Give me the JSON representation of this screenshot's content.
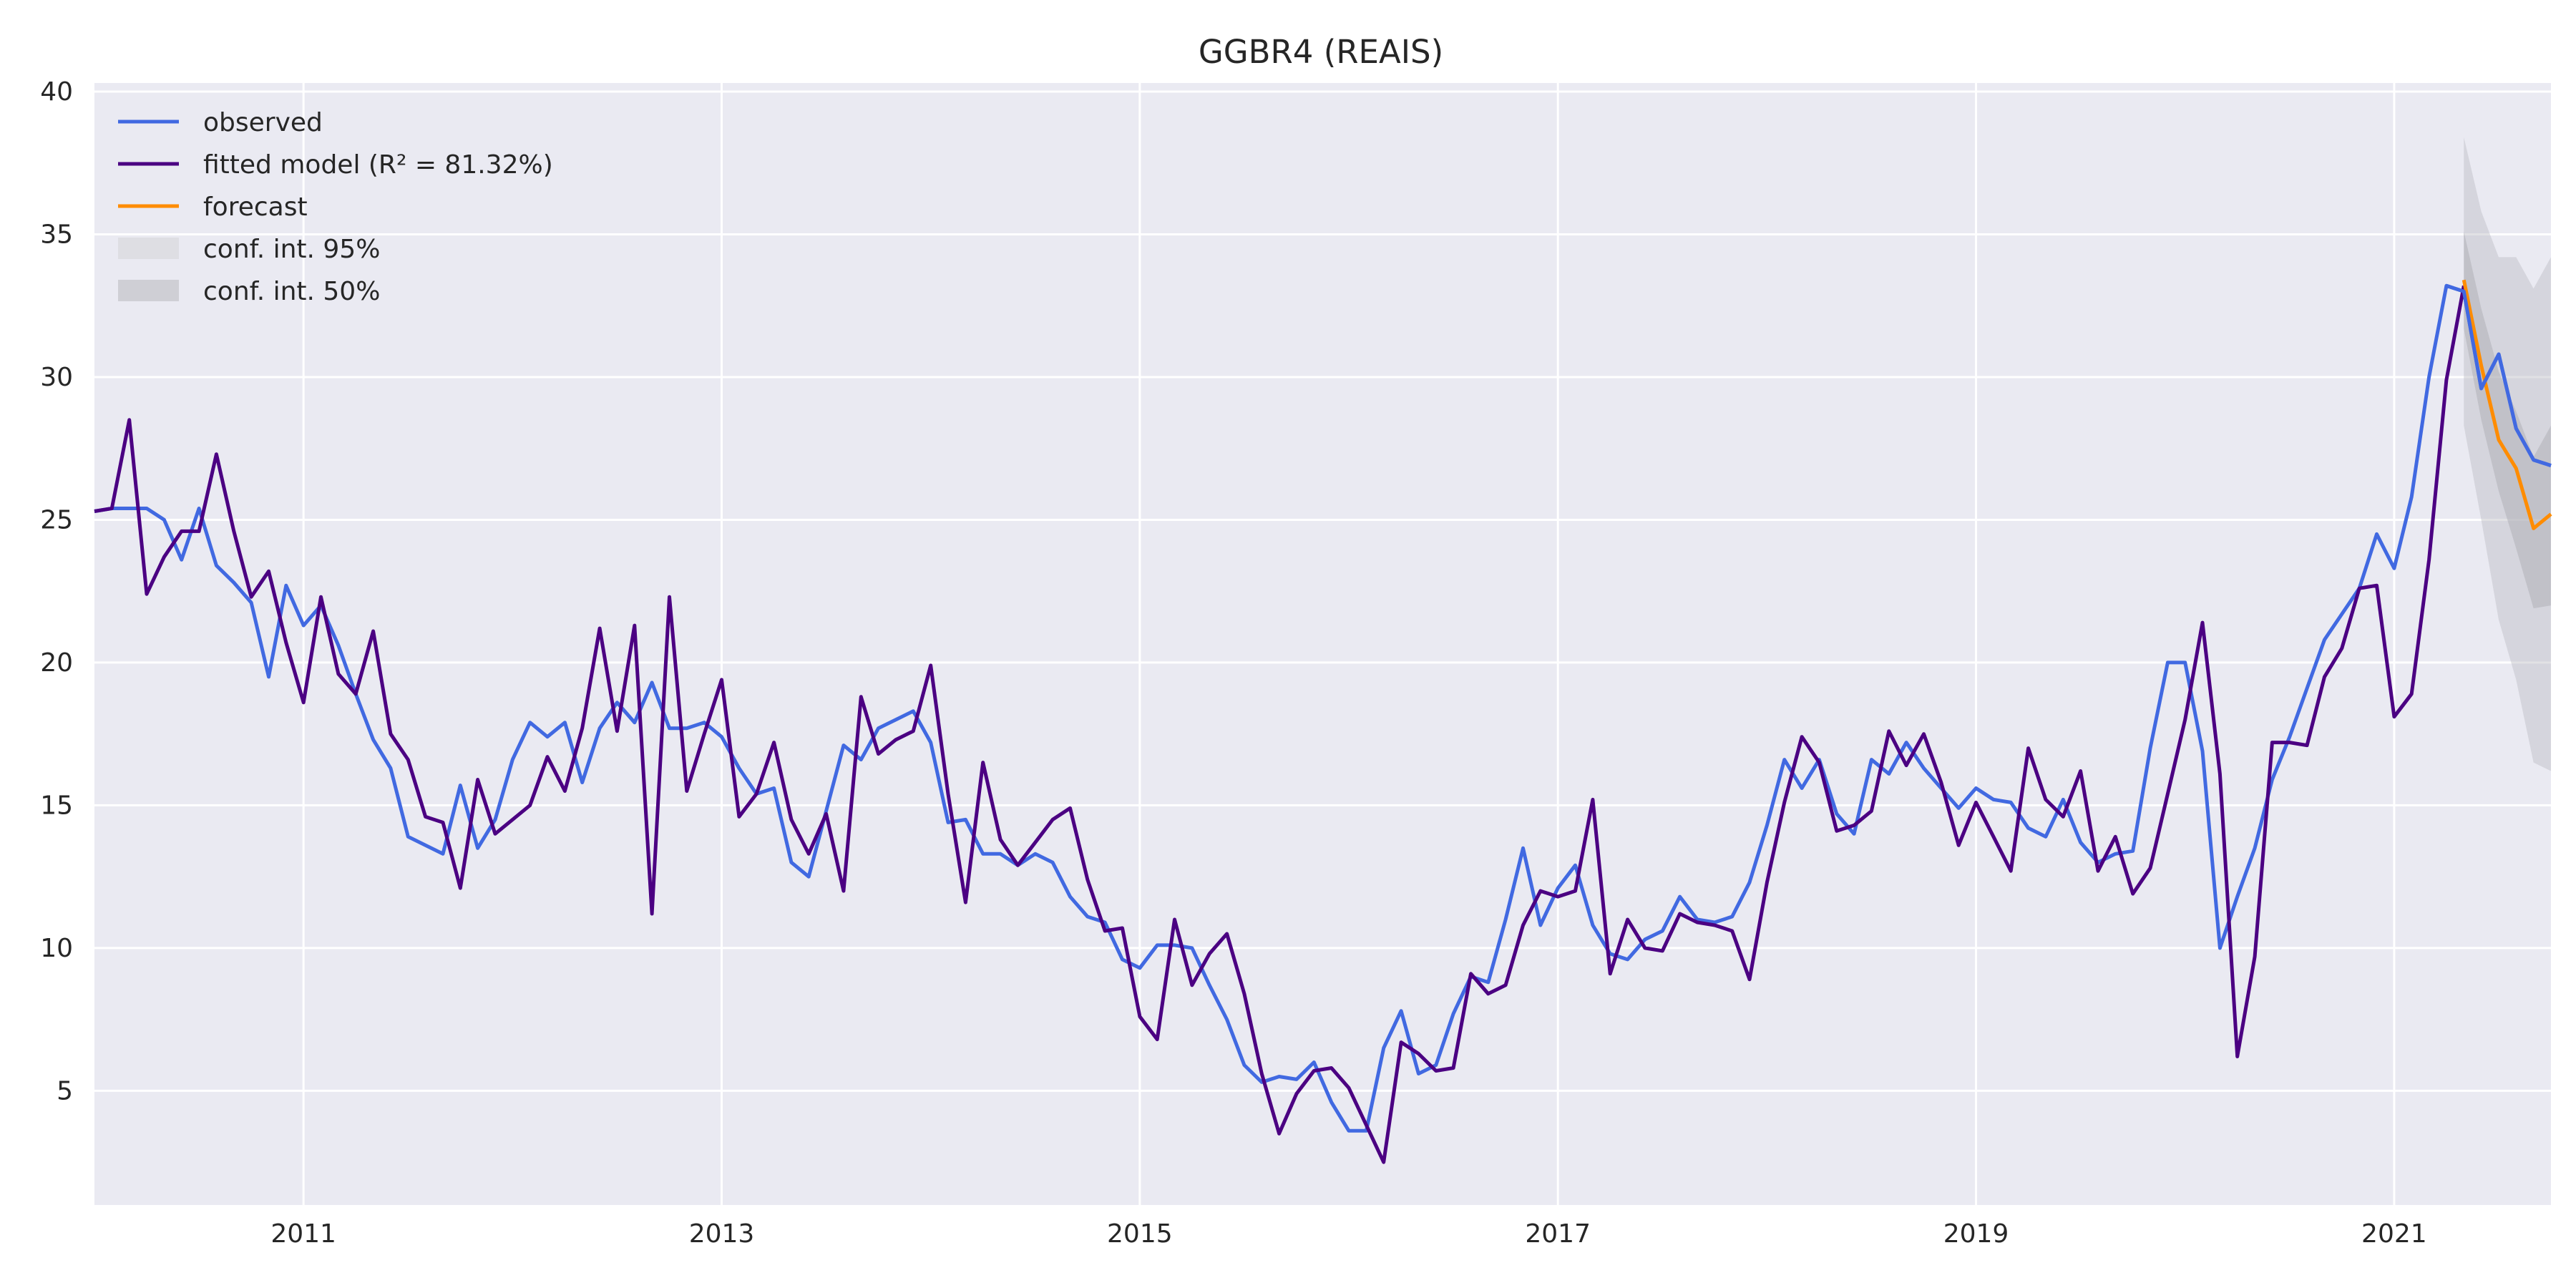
{
  "chart_data": {
    "type": "line",
    "title": "GGBR4 (REAIS)",
    "xlabel": "",
    "ylabel": "",
    "x_start": "2010-01",
    "x_ticks": [
      "2011",
      "2013",
      "2015",
      "2017",
      "2019",
      "2021"
    ],
    "y_ticks": [
      "5",
      "10",
      "15",
      "20",
      "25",
      "30",
      "35",
      "40"
    ],
    "xlim": [
      "2010-01",
      "2021-10"
    ],
    "ylim": [
      1,
      40.3
    ],
    "grid": true,
    "legend_position": "top-left",
    "colors": {
      "observed": "#4169e1",
      "fitted": "#4b0082",
      "forecast": "#ff8c00",
      "ci95": "#d3d3d8",
      "ci50": "#bcbcc2",
      "background": "#eaeaf2",
      "grid": "#ffffff"
    },
    "legend": [
      {
        "label": "observed",
        "kind": "line",
        "color": "#4169e1"
      },
      {
        "label": "fitted model (R² = 81.32%)",
        "kind": "line",
        "color": "#4b0082"
      },
      {
        "label": "forecast",
        "kind": "line",
        "color": "#ff8c00"
      },
      {
        "label": "conf. int. 95%",
        "kind": "patch",
        "color": "#dedee3"
      },
      {
        "label": "conf. int. 50%",
        "kind": "patch",
        "color": "#cfcfd5"
      }
    ],
    "series": [
      {
        "name": "observed",
        "values": [
          25.3,
          25.4,
          25.4,
          25.4,
          25.0,
          23.6,
          25.4,
          23.4,
          22.8,
          22.1,
          19.5,
          22.7,
          21.3,
          22.0,
          20.6,
          18.9,
          17.3,
          16.3,
          13.9,
          13.6,
          13.3,
          15.7,
          13.5,
          14.5,
          16.6,
          17.9,
          17.4,
          17.9,
          15.8,
          17.7,
          18.6,
          17.9,
          19.3,
          17.7,
          17.7,
          17.9,
          17.4,
          16.3,
          15.4,
          15.6,
          13.0,
          12.5,
          14.8,
          17.1,
          16.6,
          17.7,
          18.0,
          18.3,
          17.2,
          14.4,
          14.5,
          13.3,
          13.3,
          12.9,
          13.3,
          13.0,
          11.8,
          11.1,
          10.9,
          9.6,
          9.3,
          10.1,
          10.1,
          10.0,
          8.7,
          7.5,
          5.9,
          5.3,
          5.5,
          5.4,
          6.0,
          4.6,
          3.6,
          3.6,
          6.5,
          7.8,
          5.6,
          5.9,
          7.7,
          9.0,
          8.8,
          11.0,
          13.5,
          10.8,
          12.1,
          12.9,
          10.8,
          9.8,
          9.6,
          10.3,
          10.6,
          11.8,
          11.0,
          10.9,
          11.1,
          12.3,
          14.3,
          16.6,
          15.6,
          16.6,
          14.7,
          14.0,
          16.6,
          16.1,
          17.2,
          16.3,
          15.6,
          14.9,
          15.6,
          15.2,
          15.1,
          14.2,
          13.9,
          15.2,
          13.7,
          13.0,
          13.3,
          13.4,
          17.0,
          20.0,
          20.0,
          16.9,
          10.0,
          11.8,
          13.5,
          15.9,
          17.4,
          19.1,
          20.8,
          21.7,
          22.6,
          24.5,
          23.3,
          25.8,
          30.0,
          33.2,
          33.0,
          29.6,
          30.8,
          28.2,
          27.1,
          26.9
        ]
      },
      {
        "name": "fitted model (R² = 81.32%)",
        "values": [
          25.3,
          25.4,
          28.5,
          22.4,
          23.7,
          24.6,
          24.6,
          27.3,
          24.6,
          22.3,
          23.2,
          20.7,
          18.6,
          22.3,
          19.6,
          18.9,
          21.1,
          17.5,
          16.6,
          14.6,
          14.4,
          12.1,
          15.9,
          14.0,
          14.5,
          15.0,
          16.7,
          15.5,
          17.7,
          21.2,
          17.6,
          21.3,
          11.2,
          22.3,
          15.5,
          17.5,
          19.4,
          14.6,
          15.4,
          17.2,
          14.5,
          13.3,
          14.7,
          12.0,
          18.8,
          16.8,
          17.3,
          17.6,
          19.9,
          15.4,
          11.6,
          16.5,
          13.8,
          12.9,
          13.7,
          14.5,
          14.9,
          12.4,
          10.6,
          10.7,
          7.6,
          6.8,
          11.0,
          8.7,
          9.8,
          10.5,
          8.4,
          5.6,
          3.5,
          4.9,
          5.7,
          5.8,
          5.1,
          3.8,
          2.5,
          6.7,
          6.3,
          5.7,
          5.8,
          9.1,
          8.4,
          8.7,
          10.8,
          12.0,
          11.8,
          12.0,
          15.2,
          9.1,
          11.0,
          10.0,
          9.9,
          11.2,
          10.9,
          10.8,
          10.6,
          8.9,
          12.3,
          15.1,
          17.4,
          16.5,
          14.1,
          14.3,
          14.8,
          17.6,
          16.4,
          17.5,
          15.8,
          13.6,
          15.1,
          13.9,
          12.7,
          17.0,
          15.2,
          14.6,
          16.2,
          12.7,
          13.9,
          11.9,
          12.8,
          15.4,
          18.0,
          21.4,
          16.1,
          6.2,
          9.7,
          17.2,
          17.2,
          17.1,
          19.5,
          20.5,
          22.6,
          22.7,
          18.1,
          18.9,
          23.6,
          29.9,
          33.2
        ]
      },
      {
        "name": "forecast",
        "x_start_index": 136,
        "values": [
          33.4,
          30.4,
          27.8,
          26.8,
          24.7,
          25.2
        ]
      }
    ],
    "confidence_bands": [
      {
        "name": "conf. int. 95%",
        "x_start_index": 136,
        "lower": [
          28.3,
          25.0,
          21.5,
          19.4,
          16.5,
          16.2
        ],
        "upper": [
          38.4,
          35.8,
          34.2,
          34.2,
          33.1,
          34.2
        ]
      },
      {
        "name": "conf. int. 50%",
        "x_start_index": 136,
        "lower": [
          31.7,
          28.5,
          26.0,
          24.0,
          21.9,
          22.0
        ],
        "upper": [
          35.1,
          32.4,
          30.2,
          28.8,
          27.2,
          28.3
        ]
      }
    ]
  }
}
